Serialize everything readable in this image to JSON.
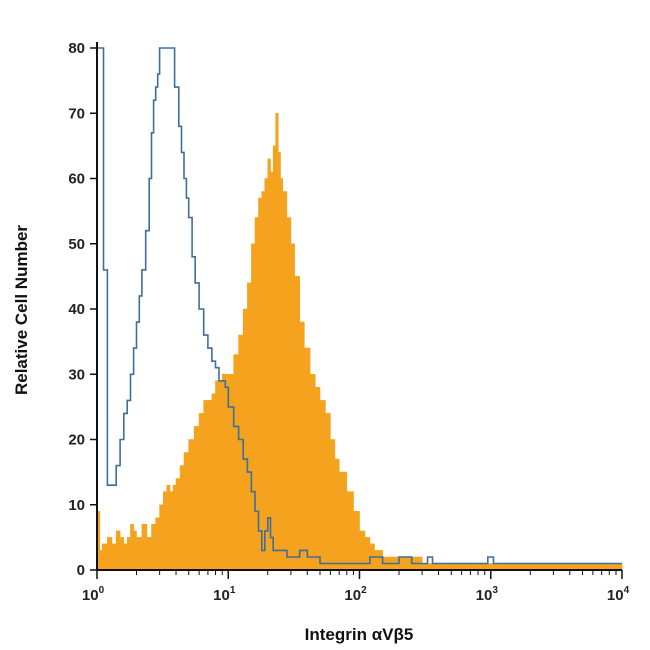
{
  "chart_data": {
    "type": "area",
    "xlabel": "Integrin αVβ5",
    "ylabel": "Relative Cell Number",
    "x_scale": "log",
    "xlim": [
      1,
      10000
    ],
    "ylim": [
      0,
      80
    ],
    "grid": false,
    "y_ticks": [
      "0",
      "10",
      "20",
      "30",
      "40",
      "50",
      "60",
      "70",
      "80"
    ],
    "x_ticks": [
      {
        "base": "10",
        "exp": "0",
        "value": 1
      },
      {
        "base": "10",
        "exp": "1",
        "value": 10
      },
      {
        "base": "10",
        "exp": "2",
        "value": 100
      },
      {
        "base": "10",
        "exp": "3",
        "value": 1000
      },
      {
        "base": "10",
        "exp": "4",
        "value": 10000
      }
    ],
    "series": [
      {
        "style": "filled",
        "color": "#f5a21f",
        "x": [
          1,
          1.05,
          1.1,
          1.2,
          1.3,
          1.4,
          1.5,
          1.6,
          1.7,
          1.8,
          1.9,
          2,
          2.2,
          2.4,
          2.6,
          2.8,
          3,
          3.2,
          3.4,
          3.6,
          3.8,
          4,
          4.3,
          4.6,
          5,
          5.5,
          6,
          6.5,
          7,
          7.5,
          8,
          8.5,
          9,
          10,
          11,
          12,
          13,
          14,
          15,
          16,
          17,
          18,
          19,
          20,
          21,
          22,
          23,
          24,
          25,
          26,
          28,
          30,
          32,
          35,
          38,
          42,
          46,
          50,
          55,
          60,
          65,
          70,
          80,
          90,
          100,
          110,
          120,
          130,
          150,
          170,
          200,
          250,
          300,
          400,
          500,
          700,
          1000,
          2000,
          5000,
          10000
        ],
        "values": [
          9,
          3,
          4,
          5,
          4,
          6,
          5,
          4,
          5,
          7,
          6,
          5,
          7,
          5,
          7,
          8,
          10,
          12,
          13,
          12,
          13,
          14,
          16,
          18,
          20,
          22,
          24,
          26,
          26,
          27,
          29,
          29,
          30,
          30,
          33,
          36,
          40,
          44,
          50,
          54,
          57,
          58,
          60,
          63,
          61,
          65,
          70,
          64,
          60,
          58,
          54,
          50,
          45,
          38,
          34,
          30,
          28,
          26,
          24,
          20,
          17,
          15,
          12,
          9,
          6,
          5,
          4,
          3,
          2,
          2,
          2,
          2,
          1,
          1,
          1,
          1,
          1,
          1,
          1,
          0
        ]
      },
      {
        "style": "line",
        "color": "#3e6e9c",
        "x": [
          1,
          1.04,
          1.08,
          1.12,
          1.2,
          1.3,
          1.4,
          1.5,
          1.6,
          1.7,
          1.8,
          1.9,
          2,
          2.1,
          2.2,
          2.35,
          2.5,
          2.6,
          2.7,
          2.8,
          2.9,
          3.0,
          3.3,
          3.6,
          3.9,
          4.2,
          4.4,
          4.6,
          4.8,
          5.0,
          5.3,
          5.6,
          6.0,
          6.5,
          7.0,
          7.5,
          8.0,
          8.5,
          9.0,
          9.5,
          10,
          11,
          12,
          13,
          14,
          15,
          16,
          17,
          18,
          19,
          20,
          21,
          22,
          24,
          26,
          28,
          30,
          35,
          40,
          45,
          50,
          60,
          70,
          80,
          100,
          120,
          150,
          200,
          250,
          300,
          330,
          360,
          400,
          500,
          700,
          900,
          950,
          1000,
          1050,
          1100,
          2000,
          5000,
          10000
        ],
        "values": [
          80,
          80,
          80,
          46,
          13,
          13,
          16,
          20,
          24,
          26,
          30,
          34,
          38,
          42,
          46,
          52,
          60,
          67,
          72,
          74,
          76,
          80,
          80,
          80,
          74,
          68,
          64,
          60,
          57,
          54,
          48,
          44,
          40,
          36,
          34,
          32,
          31,
          29,
          29,
          28,
          25,
          22,
          20,
          17,
          15,
          12,
          9,
          6,
          3,
          6,
          8,
          5,
          3,
          3,
          3,
          2,
          2,
          3,
          2,
          2,
          1,
          1,
          1,
          1,
          1,
          2,
          1,
          2,
          1,
          1,
          2,
          1,
          1,
          1,
          1,
          1,
          2,
          2,
          1,
          1,
          1,
          1,
          1
        ]
      }
    ]
  }
}
